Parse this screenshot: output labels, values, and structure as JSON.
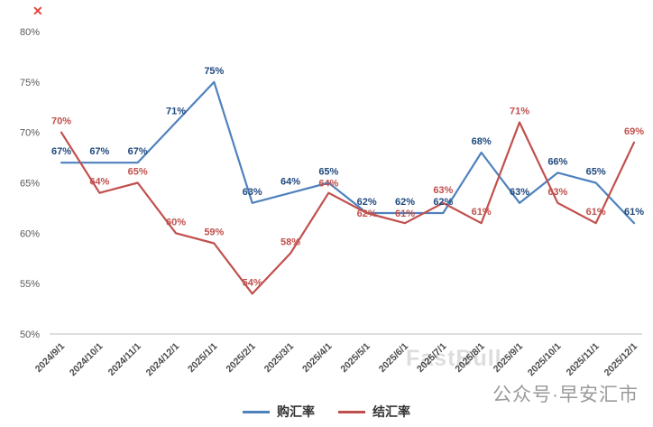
{
  "chart_data": {
    "type": "line",
    "title": "",
    "xlabel": "",
    "ylabel": "",
    "x": [
      "2024/9/1",
      "2024/10/1",
      "2024/11/1",
      "2024/12/1",
      "2025/1/1",
      "2025/2/1",
      "2025/3/1",
      "2025/4/1",
      "2025/5/1",
      "2025/6/1",
      "2025/7/1",
      "2025/8/1",
      "2025/9/1",
      "2025/10/1",
      "2025/11/1",
      "2025/12/1"
    ],
    "series": [
      {
        "name": "购汇率",
        "color": "#4f81bd",
        "label_color": "#1f497d",
        "values": [
          67,
          67,
          67,
          71,
          75,
          63,
          64,
          65,
          62,
          62,
          62,
          68,
          63,
          66,
          65,
          61
        ]
      },
      {
        "name": "结汇率",
        "color": "#c0504d",
        "label_color": "#c0504d",
        "values": [
          70,
          64,
          65,
          60,
          59,
          54,
          58,
          64,
          62,
          61,
          63,
          61,
          71,
          63,
          61,
          69
        ]
      }
    ],
    "value_suffix": "%",
    "ylim": [
      50,
      80
    ],
    "ytick_step": 5,
    "ytick_labels": [
      "50%",
      "55%",
      "60%",
      "65%",
      "70%",
      "75%",
      "80%"
    ],
    "grid": false,
    "legend_position": "bottom"
  },
  "legend": {
    "items": [
      {
        "label": "购汇率",
        "color": "#4f81bd"
      },
      {
        "label": "结汇率",
        "color": "#c0504d"
      }
    ]
  },
  "watermark": {
    "text": "FastBull"
  },
  "footer_badge": {
    "text": "公众号·早安汇市"
  },
  "top_left_marker": {
    "glyph": "✕"
  }
}
